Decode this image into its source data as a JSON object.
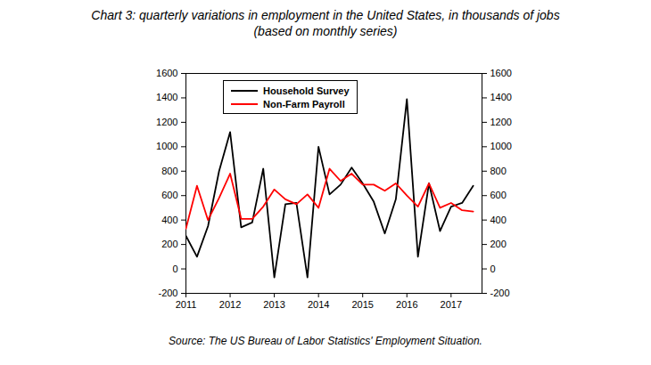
{
  "chart_data": {
    "type": "line",
    "title": "Chart 3: quarterly variations in employment in the United States, in thousands of jobs (based on monthly series)",
    "caption": "Source: The US Bureau of Labor Statistics' Employment Situation.",
    "x": [
      2011,
      2011.25,
      2011.5,
      2011.75,
      2012,
      2012.25,
      2012.5,
      2012.75,
      2013,
      2013.25,
      2013.5,
      2013.75,
      2014,
      2014.25,
      2014.5,
      2014.75,
      2015,
      2015.25,
      2015.5,
      2015.75,
      2016,
      2016.25,
      2016.5,
      2016.75,
      2017,
      2017.25,
      2017.5
    ],
    "series": [
      {
        "name": "Household Survey",
        "color": "#000000",
        "values": [
          270,
          100,
          350,
          800,
          1120,
          340,
          380,
          820,
          -70,
          530,
          540,
          -70,
          1000,
          610,
          690,
          830,
          700,
          550,
          290,
          570,
          1390,
          100,
          700,
          310,
          510,
          540,
          680
        ]
      },
      {
        "name": "Non-Farm Payroll",
        "color": "#ff0000",
        "values": [
          330,
          680,
          400,
          580,
          780,
          410,
          410,
          510,
          650,
          570,
          530,
          610,
          500,
          820,
          720,
          780,
          690,
          690,
          640,
          700,
          600,
          510,
          700,
          500,
          540,
          480,
          470
        ]
      }
    ],
    "xlim": [
      2011,
      2017.7
    ],
    "xticks": [
      2011,
      2012,
      2013,
      2014,
      2015,
      2016,
      2017
    ],
    "ylim": [
      -200,
      1600
    ],
    "yticks": [
      -200,
      0,
      200,
      400,
      600,
      800,
      1000,
      1200,
      1400,
      1600
    ],
    "y2lim": [
      -200,
      1600
    ],
    "y2ticks": [
      -200,
      0,
      200,
      400,
      600,
      800,
      1000,
      1200,
      1400,
      1600
    ],
    "grid": false,
    "legend": "top-left"
  }
}
